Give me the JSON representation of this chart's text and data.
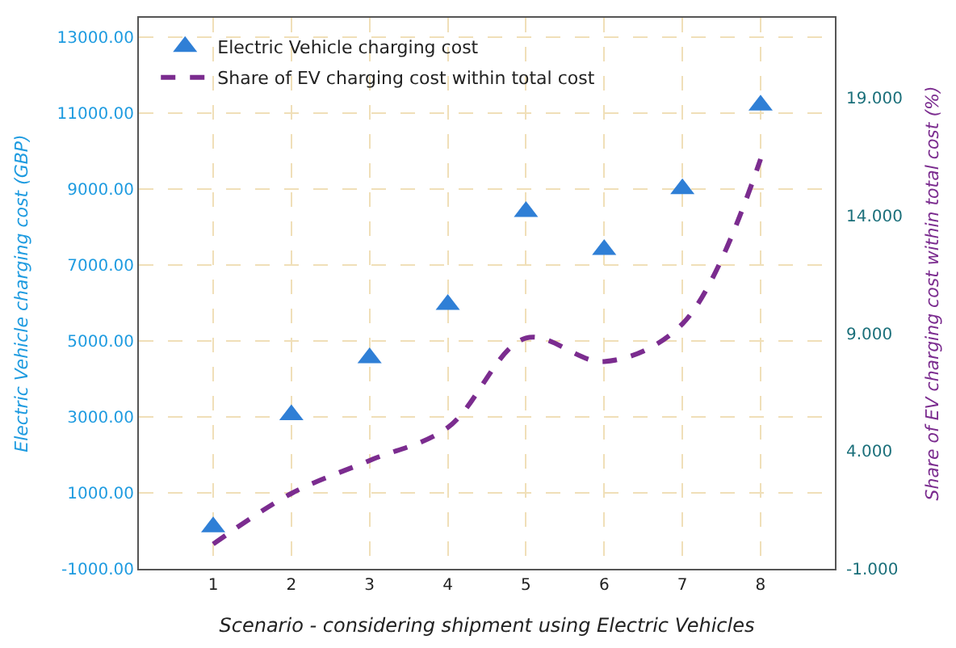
{
  "chart_data": {
    "type": "scatter",
    "xlabel": "Scenario - considering shipment using Electric Vehicles",
    "ylabel": "Electric Vehicle charging cost (GBP)",
    "y2label": "Share of EV charging cost within total cost (%)",
    "x": [
      1,
      2,
      3,
      4,
      5,
      6,
      7,
      8
    ],
    "series": [
      {
        "name": "Electric Vehicle charging cost",
        "color": "#2f7fd6",
        "marker": "triangle",
        "values": [
          100,
          3050,
          4550,
          5950,
          8400,
          7400,
          9000,
          11200
        ]
      },
      {
        "name": "Share of EV charging cost within total cost",
        "type": "line",
        "axis": "y2",
        "color": "#7b2c8f",
        "marker": "none",
        "line_style": "dashed",
        "values": [
          0.05,
          2.2,
          3.6,
          5.0,
          8.8,
          7.8,
          9.4,
          16.4
        ]
      }
    ],
    "xlim": [
      0.05,
      8.95
    ],
    "xticks": [
      1,
      2,
      3,
      4,
      5,
      6,
      7,
      8
    ],
    "ylim": [
      -1000,
      13500
    ],
    "yticks": [
      {
        "value": -1000,
        "label": "-1000.00"
      },
      {
        "value": 1000,
        "label": "1000.00"
      },
      {
        "value": 3000,
        "label": "3000.00"
      },
      {
        "value": 5000,
        "label": "5000.00"
      },
      {
        "value": 7000,
        "label": "7000.00"
      },
      {
        "value": 9000,
        "label": "9000.00"
      },
      {
        "value": 11000,
        "label": "11000.00"
      },
      {
        "value": 13000,
        "label": "13000.00"
      }
    ],
    "y2lim": [
      -1,
      22.4
    ],
    "y2ticks": [
      {
        "value": -1,
        "label": "-1.000"
      },
      {
        "value": 4,
        "label": "4.000"
      },
      {
        "value": 9,
        "label": "9.000"
      },
      {
        "value": 14,
        "label": "14.000"
      },
      {
        "value": 19,
        "label": "19.000"
      }
    ],
    "grid": true,
    "legend": "top left"
  }
}
